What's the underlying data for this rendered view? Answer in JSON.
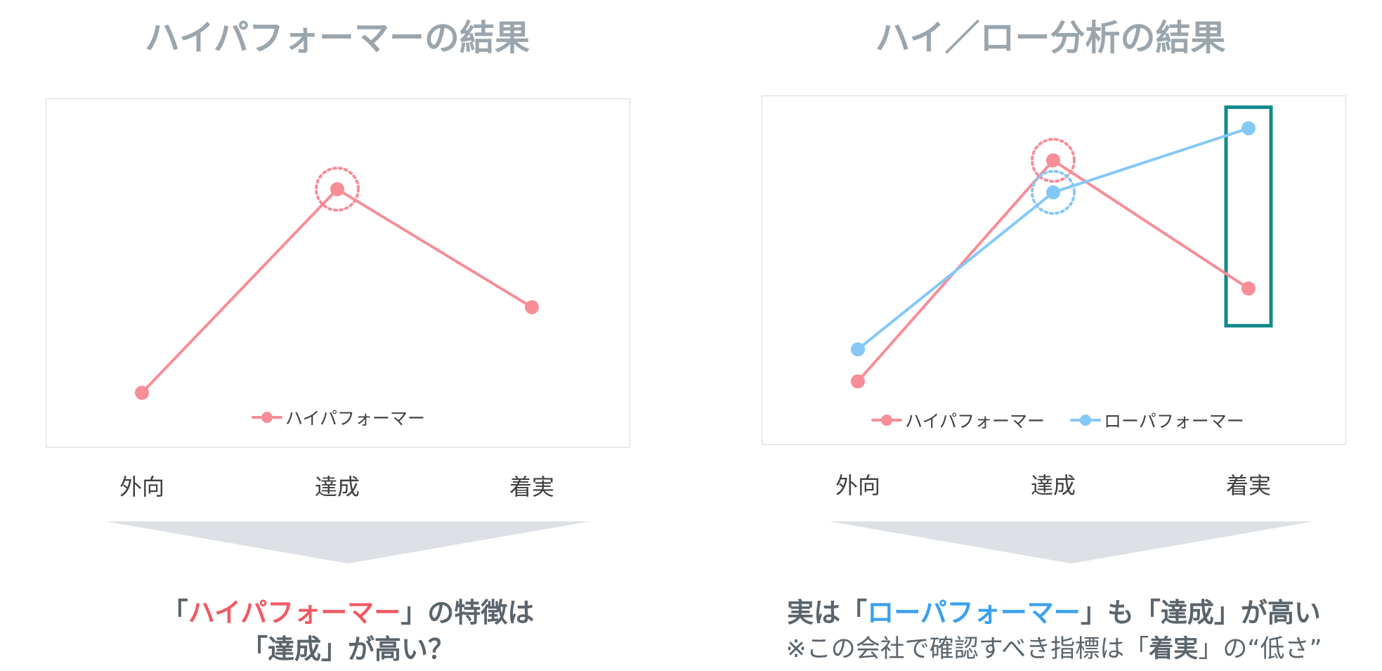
{
  "colors": {
    "high": "#f78d96",
    "low": "#84c8f8",
    "title": "#9aa5ad",
    "highlight_box": "#138a8a",
    "arrow": "#dde1e5"
  },
  "left_panel": {
    "title": "ハイパフォーマーの結果",
    "conclusion": {
      "open_bracket": "「",
      "emphasis": "ハイパフォーマー",
      "after": "」の特徴は",
      "line2": "「達成」が高い？"
    }
  },
  "right_panel": {
    "title": "ハイ／ロー分析の結果",
    "conclusion": {
      "before": "実は「",
      "emphasis": "ローパフォーマー",
      "after": "」も「達成」が高い",
      "note_before": "※この会社で確認すべき指標は「",
      "note_bold": "着実",
      "note_after": "」の“低さ”"
    }
  },
  "chart_data": [
    {
      "type": "line",
      "categories": [
        "外向",
        "達成",
        "着実"
      ],
      "series": [
        {
          "name": "ハイパフォーマー",
          "values": [
            1.0,
            7.9,
            3.9
          ]
        }
      ],
      "ylim": [
        0,
        10
      ],
      "y_axis_visible": false,
      "grid": false,
      "legend": "bottom",
      "annotations": [
        {
          "type": "dotted-circle",
          "series": 0,
          "category": "達成"
        }
      ]
    },
    {
      "type": "line",
      "categories": [
        "外向",
        "達成",
        "着実"
      ],
      "series": [
        {
          "name": "ハイパフォーマー",
          "values": [
            1.1,
            8.0,
            4.0
          ]
        },
        {
          "name": "ローパフォーマー",
          "values": [
            2.1,
            7.0,
            9.0
          ]
        }
      ],
      "ylim": [
        0,
        10
      ],
      "y_axis_visible": false,
      "grid": false,
      "legend": "bottom",
      "annotations": [
        {
          "type": "dotted-circle",
          "series": 0,
          "category": "達成"
        },
        {
          "type": "dotted-circle",
          "series": 1,
          "category": "達成"
        },
        {
          "type": "highlight-box",
          "category": "着実"
        }
      ]
    }
  ]
}
